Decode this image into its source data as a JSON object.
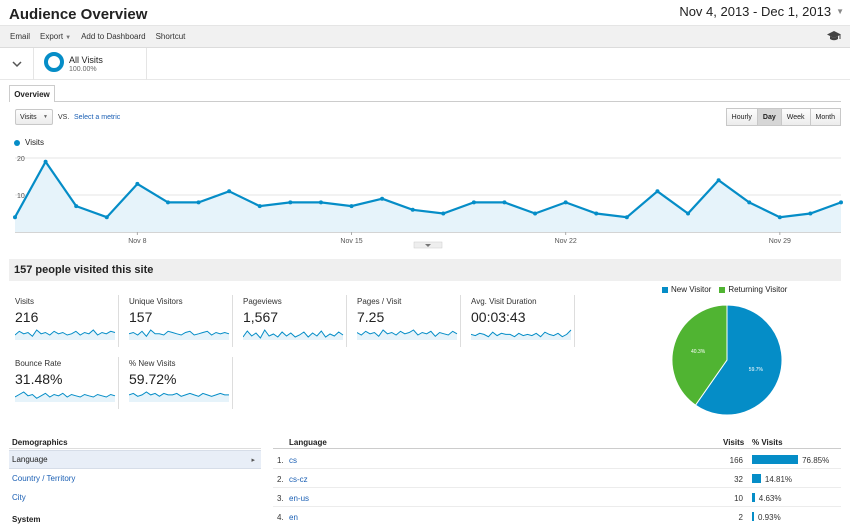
{
  "header": {
    "title": "Audience Overview",
    "date_range": "Nov 4, 2013 - Dec 1, 2013"
  },
  "toolbar": {
    "email": "Email",
    "export": "Export",
    "add_to_dashboard": "Add to Dashboard",
    "shortcut": "Shortcut"
  },
  "segment": {
    "name": "All Visits",
    "percent": "100.00%"
  },
  "tabs": {
    "overview": "Overview"
  },
  "chart_controls": {
    "metric": "Visits",
    "vs": "VS.",
    "select_metric": "Select a metric",
    "granularity": [
      "Hourly",
      "Day",
      "Week",
      "Month"
    ],
    "active_granularity": "Day"
  },
  "chart_data": [
    {
      "type": "line",
      "series": [
        {
          "name": "Visits",
          "values": [
            4,
            19,
            7,
            4,
            13,
            8,
            8,
            11,
            7,
            8,
            8,
            7,
            9,
            6,
            5,
            8,
            8,
            5,
            8,
            5,
            4,
            11,
            5,
            14,
            8,
            4,
            5,
            8
          ]
        }
      ],
      "tick_labels": [
        "Nov 8",
        "Nov 15",
        "Nov 22",
        "Nov 29"
      ],
      "y_ticks": [
        "20",
        "10"
      ],
      "ylim": [
        0,
        20
      ],
      "color": "#058dc7",
      "grid": true
    },
    {
      "type": "pie",
      "categories": [
        "New Visitor",
        "Returning Visitor"
      ],
      "values": [
        59.7,
        40.3
      ],
      "labels": [
        "59.7%",
        "40.3%"
      ],
      "colors": [
        "#058dc7",
        "#50b432"
      ],
      "legend": "top"
    }
  ],
  "summary": {
    "title": "157 people visited this site",
    "metrics": [
      {
        "label": "Visits",
        "value": "216"
      },
      {
        "label": "Unique Visitors",
        "value": "157"
      },
      {
        "label": "Pageviews",
        "value": "1,567"
      },
      {
        "label": "Pages / Visit",
        "value": "7.25"
      },
      {
        "label": "Avg. Visit Duration",
        "value": "00:03:43"
      },
      {
        "label": "Bounce Rate",
        "value": "31.48%"
      },
      {
        "label": "% New Visits",
        "value": "59.72%"
      }
    ]
  },
  "pie_legend": {
    "new": "New Visitor",
    "returning": "Returning Visitor"
  },
  "demographics": {
    "heading": "Demographics",
    "items": [
      "Language",
      "Country / Territory",
      "City"
    ],
    "section": "System"
  },
  "language_table": {
    "headers": {
      "language": "Language",
      "visits": "Visits",
      "pct": "% Visits"
    },
    "rows": [
      {
        "num": "1.",
        "lang": "cs",
        "visits": "166",
        "pct": "76.85%",
        "share": 76.85
      },
      {
        "num": "2.",
        "lang": "cs-cz",
        "visits": "32",
        "pct": "14.81%",
        "share": 14.81
      },
      {
        "num": "3.",
        "lang": "en-us",
        "visits": "10",
        "pct": "4.63%",
        "share": 4.63
      },
      {
        "num": "4.",
        "lang": "en",
        "visits": "2",
        "pct": "0.93%",
        "share": 0.93
      }
    ]
  }
}
